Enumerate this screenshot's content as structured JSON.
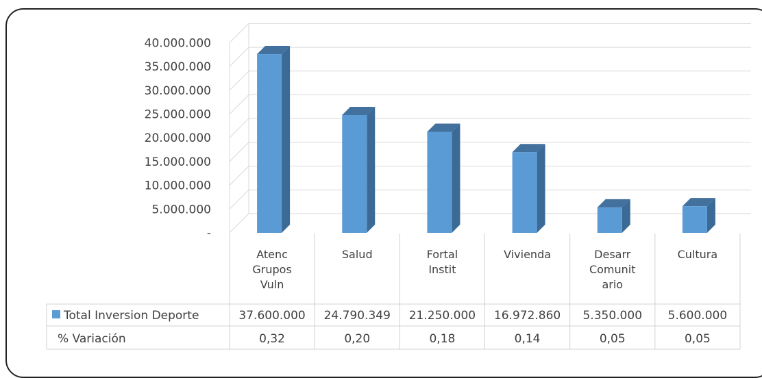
{
  "chart_data": {
    "type": "bar",
    "categories": [
      [
        "Atenc",
        "Grupos",
        "Vuln"
      ],
      [
        "Salud"
      ],
      [
        "Fortal",
        "Instit"
      ],
      [
        "Vivienda"
      ],
      [
        "Desarr",
        "Comunit",
        "ario"
      ],
      [
        "Cultura"
      ]
    ],
    "series": [
      {
        "name": "Total Inversion Deporte",
        "values": [
          37600000,
          24790349,
          21250000,
          16972860,
          5350000,
          5600000
        ],
        "color": "#5b9bd5"
      }
    ],
    "table": {
      "rows": [
        {
          "label": "Total Inversion Deporte",
          "cells": [
            "37.600.000",
            "24.790.349",
            "21.250.000",
            "16.972.860",
            "5.350.000",
            "5.600.000"
          ]
        },
        {
          "label": "% Variación",
          "cells": [
            "0,32",
            "0,20",
            "0,18",
            "0,14",
            "0,05",
            "0,05"
          ]
        }
      ]
    },
    "yticks": [
      "-",
      "5.000.000",
      "10.000.000",
      "15.000.000",
      "20.000.000",
      "25.000.000",
      "30.000.000",
      "35.000.000",
      "40.000.000"
    ],
    "ylim": [
      0,
      40000000
    ],
    "grid": true,
    "legend": "table",
    "colors": {
      "bar_front": "#5b9bd5",
      "bar_side": "#3b6a96",
      "bar_top": "#41719c",
      "grid": "#d9d9d9",
      "text": "#404040"
    }
  }
}
